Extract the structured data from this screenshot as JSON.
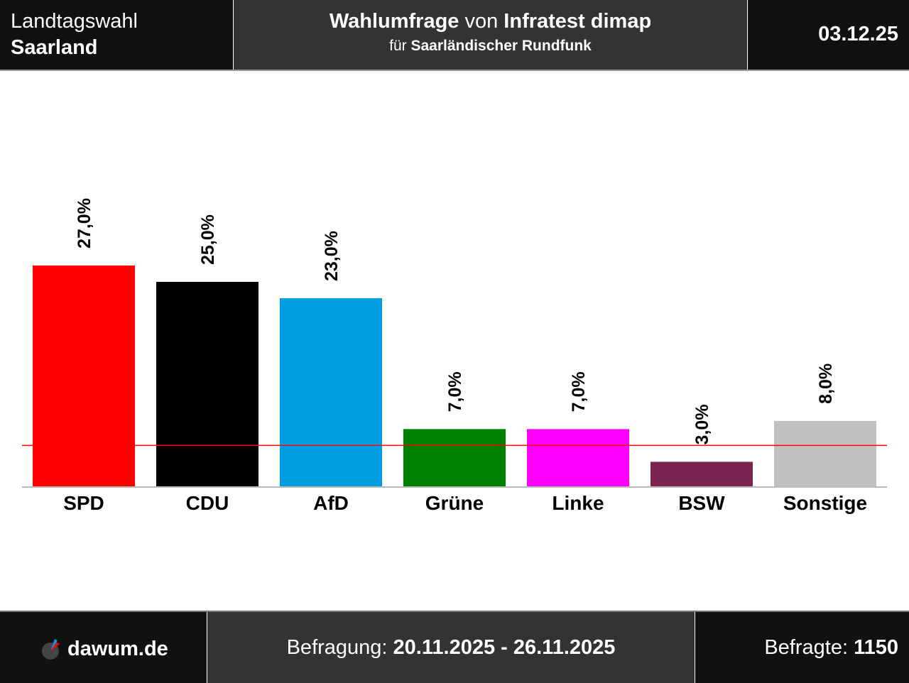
{
  "header": {
    "election": "Landtagswahl",
    "region": "Saarland",
    "title_bold1": "Wahlumfrage",
    "title_mid": " von ",
    "institute": "Infratest dimap",
    "sub_pre": "für ",
    "client": "Saarländischer Rundfunk",
    "date": "03.12.25"
  },
  "footer": {
    "brand": "dawum.de",
    "period_label": "Befragung: ",
    "period": "20.11.2025 - 26.11.2025",
    "sample_label": "Befragte: ",
    "sample": "1150"
  },
  "chart_data": {
    "type": "bar",
    "categories": [
      "SPD",
      "CDU",
      "AfD",
      "Grüne",
      "Linke",
      "BSW",
      "Sonstige"
    ],
    "values": [
      27,
      25,
      23,
      7,
      7,
      3,
      8
    ],
    "labels": [
      "27,0%",
      "25,0%",
      "23,0%",
      "7,0%",
      "7,0%",
      "3,0%",
      "8,0%"
    ],
    "colors": [
      "#ff0000",
      "#000000",
      "#009ee0",
      "#008000",
      "#ff00ff",
      "#7b2450",
      "#c0c0c0"
    ],
    "threshold": 5,
    "threshold_color": "#ff0000",
    "ylim": [
      0,
      30
    ]
  }
}
